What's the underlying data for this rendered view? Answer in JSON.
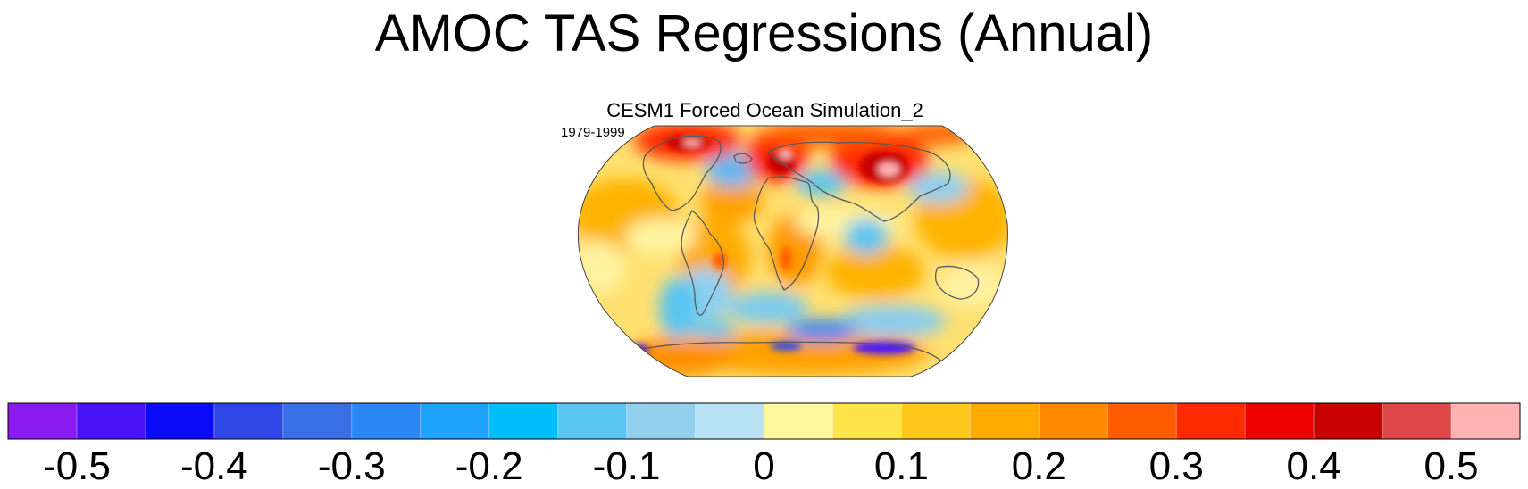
{
  "figure": {
    "title": "AMOC TAS Regressions (Annual)",
    "panel_title": "CESM1 Forced Ocean Simulation_2",
    "period": "1979-1999"
  },
  "colorbar": {
    "levels": [
      -0.5,
      -0.45,
      -0.4,
      -0.35,
      -0.3,
      -0.25,
      -0.2,
      -0.15,
      -0.1,
      -0.05,
      0,
      0.05,
      0.1,
      0.15,
      0.2,
      0.25,
      0.3,
      0.35,
      0.4,
      0.45,
      0.5
    ],
    "colors": [
      "#8a1cf0",
      "#4813f7",
      "#0b0bf7",
      "#2f47e6",
      "#3a6ee6",
      "#2b87f5",
      "#1ea2fb",
      "#00bdfb",
      "#58c5f2",
      "#93d0ed",
      "#b9e2f5",
      "#fff89c",
      "#ffe34a",
      "#ffc71c",
      "#ffaa00",
      "#ff8a00",
      "#ff5c00",
      "#ff2a00",
      "#ed0000",
      "#c80000",
      "#de4848",
      "#ffb2b2"
    ],
    "tick_labels": [
      "-0.5",
      "-0.4",
      "-0.3",
      "-0.2",
      "-0.1",
      "0",
      "0.1",
      "0.2",
      "0.3",
      "0.4",
      "0.5"
    ]
  },
  "legend_colors": {
    "coastline": "#5a5a5a",
    "ocean_background": "#fff2a6"
  }
}
